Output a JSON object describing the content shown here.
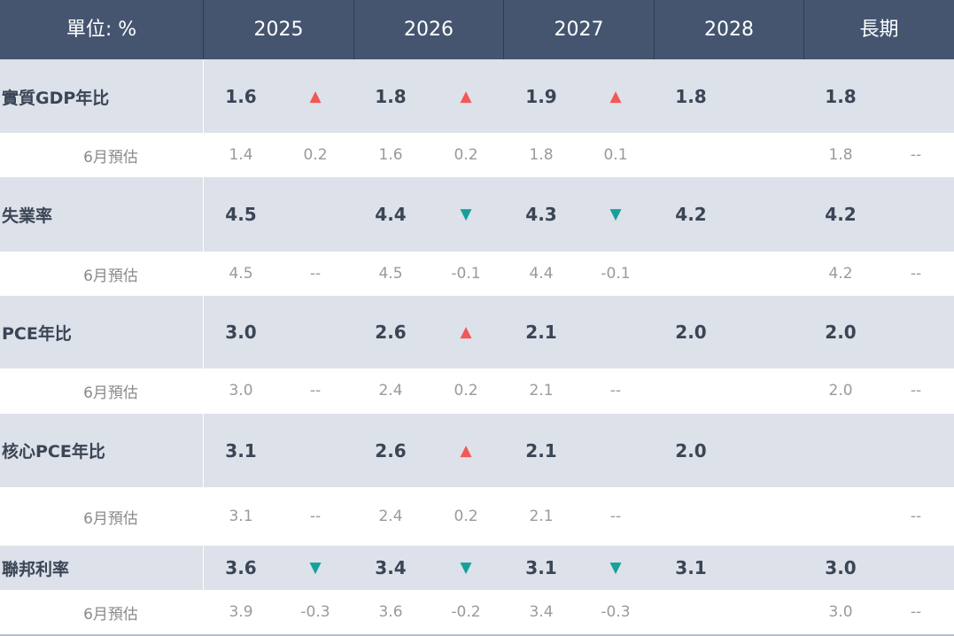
{
  "header": {
    "unit_label": "單位: %",
    "years": [
      "2025",
      "2026",
      "2027",
      "2028"
    ],
    "long_run": "長期"
  },
  "colors": {
    "up": "#f25858",
    "down": "#15a19a",
    "header_bg": "#455570",
    "row_bg": "#dde1e9"
  },
  "arrow_glyphs": {
    "up": "▲",
    "down": "▼"
  },
  "rows": [
    {
      "label": "實質GDP年比",
      "values": [
        "1.6",
        "1.8",
        "1.9",
        "1.8",
        "1.8"
      ],
      "arrows": [
        "up",
        "up",
        "up"
      ],
      "sub": {
        "label": "6月預估",
        "values": [
          "1.4",
          "1.6",
          "1.8",
          "",
          "1.8"
        ],
        "changes": [
          "0.2",
          "0.2",
          "0.1"
        ],
        "long_change": "--"
      }
    },
    {
      "label": "失業率",
      "values": [
        "4.5",
        "4.4",
        "4.3",
        "4.2",
        "4.2"
      ],
      "arrows": [
        "",
        "down",
        "down"
      ],
      "sub": {
        "label": "6月預估",
        "values": [
          "4.5",
          "4.5",
          "4.4",
          "",
          "4.2"
        ],
        "changes": [
          "--",
          "-0.1",
          "-0.1"
        ],
        "long_change": "--"
      }
    },
    {
      "label": "PCE年比",
      "values": [
        "3.0",
        "2.6",
        "2.1",
        "2.0",
        "2.0"
      ],
      "arrows": [
        "",
        "up",
        ""
      ],
      "sub": {
        "label": "6月預估",
        "values": [
          "3.0",
          "2.4",
          "2.1",
          "",
          "2.0"
        ],
        "changes": [
          "--",
          "0.2",
          "--"
        ],
        "long_change": "--"
      }
    },
    {
      "label": "核心PCE年比",
      "values": [
        "3.1",
        "2.6",
        "2.1",
        "2.0",
        ""
      ],
      "arrows": [
        "",
        "up",
        ""
      ],
      "sub": {
        "label": "6月預估",
        "values": [
          "3.1",
          "2.4",
          "2.1",
          "",
          ""
        ],
        "changes": [
          "--",
          "0.2",
          "--"
        ],
        "long_change": "--"
      }
    },
    {
      "label": "聯邦利率",
      "values": [
        "3.6",
        "3.4",
        "3.1",
        "3.1",
        "3.0"
      ],
      "arrows": [
        "down",
        "down",
        "down"
      ],
      "sub": {
        "label": "6月預估",
        "values": [
          "3.9",
          "3.6",
          "3.4",
          "",
          "3.0"
        ],
        "changes": [
          "-0.3",
          "-0.2",
          "-0.3"
        ],
        "long_change": "--"
      }
    }
  ]
}
